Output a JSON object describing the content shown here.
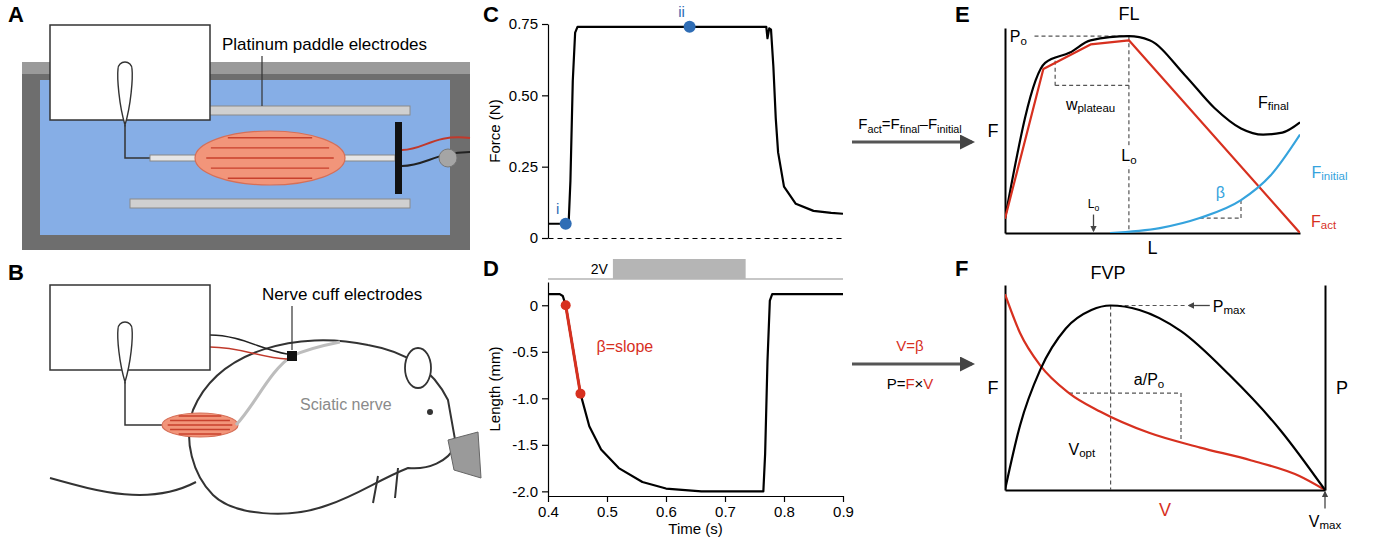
{
  "diagram": {
    "panel_letters": [
      "A",
      "B"
    ],
    "labels": [
      "Platinum paddle electrodes",
      "Nerve cuff electrodes",
      "Sciatic nerve"
    ],
    "arrows": [
      {
        "above": [
          {
            "t": "F"
          },
          {
            "t": "act",
            "sub": true
          },
          {
            "t": "=F"
          },
          {
            "t": "final",
            "sub": true
          },
          {
            "t": "–F"
          },
          {
            "t": "initial",
            "sub": true
          }
        ]
      },
      {
        "above": [
          {
            "t": "V=β",
            "color": "#d7301f"
          }
        ],
        "below": [
          {
            "t": "P="
          },
          {
            "t": "F",
            "color": "#d7301f"
          },
          {
            "t": "×"
          },
          {
            "t": "V",
            "color": "#d7301f"
          }
        ]
      }
    ]
  },
  "chart_data": [
    {
      "panel_label": "C",
      "type": "line",
      "ylabel": "Force (N)",
      "xlim": [
        0.4,
        0.9
      ],
      "ylim": [
        0,
        0.75
      ],
      "yticks": [
        0,
        0.25,
        {
          "value": 0.5,
          "label": "0.50"
        },
        0.75
      ],
      "tick_labels": "y",
      "color": "#000000",
      "x": [
        0.4,
        0.42,
        0.43,
        0.435,
        0.438,
        0.442,
        0.446,
        0.45,
        0.5,
        0.55,
        0.6,
        0.65,
        0.7,
        0.75,
        0.77,
        0.772,
        0.775,
        0.778,
        0.782,
        0.786,
        0.79,
        0.8,
        0.82,
        0.85,
        0.88,
        0.9
      ],
      "values": [
        0.05,
        0.05,
        0.05,
        0.052,
        0.2,
        0.55,
        0.72,
        0.74,
        0.74,
        0.74,
        0.74,
        0.74,
        0.74,
        0.74,
        0.74,
        0.7,
        0.735,
        0.73,
        0.6,
        0.42,
        0.3,
        0.18,
        0.12,
        0.095,
        0.088,
        0.085
      ],
      "points": [
        {
          "label": "i",
          "x": 0.43,
          "y": 0.05,
          "color": "#2f6db5"
        },
        {
          "label": "ii",
          "x": 0.64,
          "y": 0.74,
          "color": "#2f6db5"
        }
      ]
    },
    {
      "panel_label": "D",
      "type": "line",
      "xlabel": "Time (s)",
      "ylabel": "Length (mm)",
      "xlim": [
        0.4,
        0.9
      ],
      "ylim": [
        -2.05,
        0.25
      ],
      "xticks": [
        0.4,
        0.5,
        0.6,
        0.7,
        0.8,
        0.9
      ],
      "yticks": [
        0,
        -0.5,
        {
          "value": -1,
          "label": "-1.0"
        },
        -1.5,
        {
          "value": -2,
          "label": "-2.0"
        }
      ],
      "color": "#000000",
      "x": [
        0.4,
        0.42,
        0.425,
        0.43,
        0.455,
        0.47,
        0.49,
        0.52,
        0.56,
        0.6,
        0.66,
        0.7,
        0.765,
        0.768,
        0.772,
        0.776,
        0.78,
        0.9
      ],
      "values": [
        0.12,
        0.12,
        0.1,
        0,
        -0.95,
        -1.3,
        -1.55,
        -1.75,
        -1.9,
        -1.97,
        -2.0,
        -2.0,
        -2.0,
        -1.6,
        -0.6,
        0.05,
        0.12,
        0.12
      ],
      "slope": {
        "label": "β=slope",
        "x": [
          0.43,
          0.455
        ],
        "y": [
          0,
          -0.95
        ],
        "color": "#d7301f"
      },
      "stimulus": {
        "label": "2V",
        "start": 0.51,
        "end": 0.735,
        "color": "#b5b5b5"
      }
    },
    {
      "panel_label": "E",
      "type": "line",
      "title": "FL",
      "xlabel": "L",
      "ylabel": "F",
      "xlim": [
        0,
        1
      ],
      "ylim": [
        0,
        1
      ],
      "tick_labels": false,
      "series": [
        {
          "color": "#000000",
          "x": [
            0,
            0.136,
            0.22,
            0.29,
            0.42,
            0.49,
            0.61,
            0.71,
            0.8,
            0.875,
            0.94,
            1.0
          ],
          "values": [
            0.07,
            0.83,
            0.88,
            0.94,
            0.96,
            0.94,
            0.77,
            0.61,
            0.51,
            0.48,
            0.49,
            0.54
          ]
        },
        {
          "color": "#d7301f",
          "x": [
            0,
            0.13,
            0.29,
            0.42,
            1.0
          ],
          "values": [
            0.07,
            0.8,
            0.92,
            0.94,
            0
          ]
        },
        {
          "color": "#35a3dd",
          "x": [
            0.356,
            0.525,
            0.66,
            0.8,
            0.9,
            1.0
          ],
          "values": [
            0,
            0.024,
            0.073,
            0.16,
            0.28,
            0.48
          ]
        }
      ],
      "guides": [
        {
          "x": [
            0.1,
            0.42
          ],
          "y": [
            0.96,
            0.96
          ]
        },
        {
          "x": [
            0.42,
            0.42
          ],
          "y": [
            0.96,
            0
          ]
        },
        {
          "x": [
            0.17,
            0.42
          ],
          "y": [
            0.72,
            0.72
          ]
        },
        {
          "x": [
            0.17,
            0.17
          ],
          "y": [
            0.84,
            0.72
          ]
        },
        {
          "x": [
            0.66,
            0.8
          ],
          "y": [
            0.073,
            0.073
          ]
        },
        {
          "x": [
            0.8,
            0.8
          ],
          "y": [
            0.073,
            0.16
          ]
        }
      ],
      "annotations": [
        {
          "text": [
            {
              "t": "F"
            },
            {
              "t": "final",
              "sub": true
            }
          ],
          "x": 0.91,
          "y": 0.64,
          "color": "#000000"
        },
        {
          "text": [
            {
              "t": "F"
            },
            {
              "t": "initial",
              "sub": true
            }
          ],
          "x": 1.1,
          "y": 0.3,
          "color": "#35a3dd"
        },
        {
          "text": [
            {
              "t": "F"
            },
            {
              "t": "act",
              "sub": true
            }
          ],
          "x": 1.08,
          "y": 0.06,
          "color": "#d7301f"
        },
        {
          "text": [
            {
              "t": "P"
            },
            {
              "t": "o",
              "sub": true
            }
          ],
          "x": 0.045,
          "y": 0.96,
          "color": "#000000"
        },
        {
          "text": [
            {
              "t": "w"
            },
            {
              "t": "plateau",
              "sub": true
            }
          ],
          "x": 0.29,
          "y": 0.63,
          "color": "#000000"
        },
        {
          "text": [
            {
              "t": "L"
            },
            {
              "t": "o",
              "sub": true
            }
          ],
          "x": 0.42,
          "y": 0.38,
          "color": "#000000"
        },
        {
          "text": [
            {
              "t": "L"
            },
            {
              "t": "o",
              "sub": true
            }
          ],
          "x": 0.3,
          "y": 0.14,
          "color": "#000000"
        },
        {
          "text": "β",
          "x": 0.73,
          "y": 0.2,
          "color": "#35a3dd"
        }
      ]
    },
    {
      "panel_label": "F",
      "type": "line",
      "title": "FVP",
      "xlabel": [
        {
          "t": "V",
          "color": "#d7301f"
        }
      ],
      "ylabel": "F",
      "y2label": "P",
      "xlim": [
        0,
        1
      ],
      "ylim": [
        0,
        1
      ],
      "y2lim": [
        0,
        1
      ],
      "tick_labels": false,
      "series": [
        {
          "color": "#d7301f",
          "x": [
            0,
            0.047,
            0.11,
            0.2,
            0.297,
            0.45,
            0.61,
            0.77,
            0.92,
            1
          ],
          "values": [
            0.955,
            0.766,
            0.608,
            0.473,
            0.383,
            0.279,
            0.207,
            0.144,
            0.068,
            0
          ]
        },
        {
          "color": "#000000",
          "axis": "y2",
          "x": [
            0,
            0.047,
            0.11,
            0.19,
            0.27,
            0.33,
            0.42,
            0.55,
            0.7,
            0.86,
            1
          ],
          "values": [
            0,
            0.315,
            0.586,
            0.788,
            0.878,
            0.9,
            0.878,
            0.775,
            0.563,
            0.293,
            0
          ]
        }
      ],
      "guides": [
        {
          "x": [
            0.33,
            0.57
          ],
          "y": [
            0.9,
            0.9
          ]
        },
        {
          "x": [
            0.33,
            0.33
          ],
          "y": [
            0.9,
            0
          ]
        },
        {
          "x": [
            0.2,
            0.55
          ],
          "y": [
            0.473,
            0.473
          ]
        },
        {
          "x": [
            0.55,
            0.55
          ],
          "y": [
            0.473,
            0.24
          ]
        }
      ],
      "annotations": [
        {
          "text": [
            {
              "t": "P"
            },
            {
              "t": "max",
              "sub": true
            }
          ],
          "x": 0.7,
          "y": 0.9,
          "color": "#000000"
        },
        {
          "text": [
            {
              "t": "V"
            },
            {
              "t": "opt",
              "sub": true
            }
          ],
          "x": 0.24,
          "y": 0.2,
          "color": "#000000"
        },
        {
          "text": [
            {
              "t": "a/P"
            },
            {
              "t": "o",
              "sub": true
            }
          ],
          "x": 0.45,
          "y": 0.54,
          "color": "#000000"
        },
        {
          "text": [
            {
              "t": "V"
            },
            {
              "t": "max",
              "sub": true
            }
          ],
          "x": 1.0,
          "y": -0.15,
          "color": "#000000"
        }
      ]
    }
  ]
}
